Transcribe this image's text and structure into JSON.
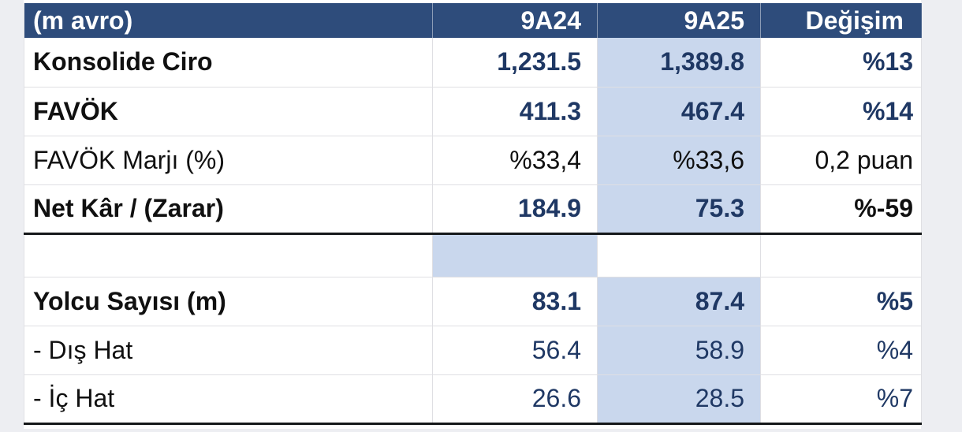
{
  "colors": {
    "page_bg": "#EDEEF2",
    "table_bg": "#FFFFFF",
    "header_bg": "#2E4C7B",
    "header_text": "#FFFFFF",
    "highlight": "#C9D7ED",
    "navy": "#1F3864",
    "ink": "#101010",
    "grid_line": "#DFDFE3",
    "thick_line": "#15181A"
  },
  "chart_data": {
    "type": "table",
    "title": "Financial summary (m avro) 9A24 vs 9A25",
    "columns": [
      "(m avro)",
      "9A24",
      "9A25",
      "Değişim"
    ],
    "highlighted_column": "9A25",
    "rows": [
      {
        "kind": "data",
        "label": "Konsolide Ciro",
        "values": [
          "1,231.5",
          "1,389.8",
          "%13"
        ],
        "highlight": "9A25",
        "label_class": "bold",
        "value_class": "navy bold",
        "change_class": "navy bold",
        "thick_bottom": false
      },
      {
        "kind": "data",
        "label": "FAVÖK",
        "values": [
          "411.3",
          "467.4",
          "%14"
        ],
        "highlight": "9A25",
        "label_class": "bold",
        "value_class": "navy bold",
        "change_class": "navy bold",
        "thick_bottom": false
      },
      {
        "kind": "data",
        "label": "FAVÖK Marjı (%)",
        "values": [
          "%33,4",
          "%33,6",
          "0,2 puan"
        ],
        "highlight": "9A25",
        "label_class": "",
        "value_class": "ink",
        "change_class": "ink",
        "thick_bottom": false
      },
      {
        "kind": "data",
        "label": "Net Kâr / (Zarar)",
        "values": [
          "184.9",
          "75.3",
          "%-59"
        ],
        "highlight": "9A25",
        "label_class": "bold",
        "value_class": "navy bold",
        "change_class": "ink bold",
        "thick_bottom": true
      },
      {
        "kind": "spacer",
        "label": "",
        "values": [
          "",
          "",
          ""
        ],
        "highlight": "9A24",
        "label_class": "",
        "value_class": "",
        "change_class": "",
        "thick_bottom": false
      },
      {
        "kind": "data",
        "label": "Yolcu Sayısı (m)",
        "values": [
          "83.1",
          "87.4",
          "%5"
        ],
        "highlight": "9A25",
        "label_class": "bold",
        "value_class": "navy bold",
        "change_class": "navy bold",
        "thick_bottom": false
      },
      {
        "kind": "data",
        "label": "- Dış Hat",
        "values": [
          "56.4",
          "58.9",
          "%4"
        ],
        "highlight": "9A25",
        "label_class": "",
        "value_class": "navy",
        "change_class": "navy",
        "thick_bottom": false
      },
      {
        "kind": "data",
        "label": "- İç Hat",
        "values": [
          "26.6",
          "28.5",
          "%7"
        ],
        "highlight": "9A25",
        "label_class": "",
        "value_class": "navy",
        "change_class": "navy",
        "thick_bottom": true
      }
    ]
  }
}
